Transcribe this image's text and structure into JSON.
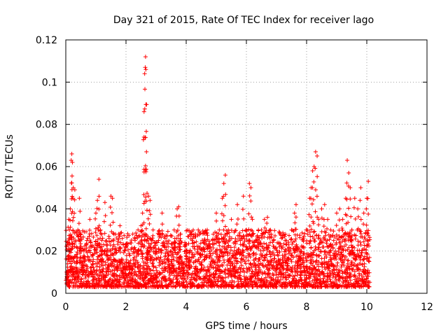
{
  "chart_data": {
    "type": "scatter",
    "title": "Day 321 of 2015, Rate Of TEC Index for receiver lago",
    "xlabel": "GPS time / hours",
    "ylabel": "ROTI / TECUs",
    "xlim": [
      0,
      12
    ],
    "ylim": [
      0,
      0.12
    ],
    "x_ticks": [
      0,
      2,
      4,
      6,
      8,
      10,
      12
    ],
    "x_tick_labels": [
      "0",
      "2",
      "4",
      "6",
      "8",
      "10",
      "12"
    ],
    "y_ticks": [
      0,
      0.02,
      0.04,
      0.06,
      0.08,
      0.1,
      0.12
    ],
    "y_tick_labels": [
      "0",
      "0.02",
      "0.04",
      "0.06",
      "0.08",
      "0.1",
      "0.12"
    ],
    "grid": true,
    "marker": "+",
    "color": "#ff0000",
    "series": [
      {
        "name": "ROTI",
        "points": [
          [
            0.05,
            0.008
          ],
          [
            0.08,
            0.021
          ],
          [
            0.1,
            0.035
          ],
          [
            0.12,
            0.03
          ],
          [
            0.15,
            0.04
          ],
          [
            0.18,
            0.063
          ],
          [
            0.2,
            0.066
          ],
          [
            0.22,
            0.062
          ],
          [
            0.25,
            0.05
          ],
          [
            0.3,
            0.049
          ],
          [
            0.35,
            0.015
          ],
          [
            0.4,
            0.03
          ],
          [
            0.45,
            0.045
          ],
          [
            0.5,
            0.028
          ],
          [
            0.55,
            0.012
          ],
          [
            0.6,
            0.02
          ],
          [
            0.7,
            0.025
          ],
          [
            0.8,
            0.035
          ],
          [
            0.9,
            0.018
          ],
          [
            1.0,
            0.038
          ],
          [
            1.05,
            0.044
          ],
          [
            1.1,
            0.054
          ],
          [
            1.15,
            0.03
          ],
          [
            1.2,
            0.022
          ],
          [
            1.3,
            0.043
          ],
          [
            1.4,
            0.02
          ],
          [
            1.5,
            0.046
          ],
          [
            1.55,
            0.045
          ],
          [
            1.6,
            0.028
          ],
          [
            1.7,
            0.015
          ],
          [
            1.8,
            0.032
          ],
          [
            1.9,
            0.01
          ],
          [
            2.0,
            0.022
          ],
          [
            2.1,
            0.014
          ],
          [
            2.2,
            0.012
          ],
          [
            2.3,
            0.025
          ],
          [
            2.4,
            0.03
          ],
          [
            2.5,
            0.032
          ],
          [
            2.55,
            0.038
          ],
          [
            2.6,
            0.086
          ],
          [
            2.62,
            0.104
          ],
          [
            2.64,
            0.107
          ],
          [
            2.65,
            0.112
          ],
          [
            2.66,
            0.106
          ],
          [
            2.68,
            0.067
          ],
          [
            2.7,
            0.025
          ],
          [
            2.75,
            0.046
          ],
          [
            2.8,
            0.044
          ],
          [
            2.9,
            0.03
          ],
          [
            3.0,
            0.02
          ],
          [
            3.1,
            0.028
          ],
          [
            3.2,
            0.038
          ],
          [
            3.3,
            0.026
          ],
          [
            3.4,
            0.022
          ],
          [
            3.5,
            0.015
          ],
          [
            3.6,
            0.03
          ],
          [
            3.7,
            0.04
          ],
          [
            3.75,
            0.041
          ],
          [
            3.8,
            0.028
          ],
          [
            3.9,
            0.012
          ],
          [
            4.0,
            0.02
          ],
          [
            4.1,
            0.015
          ],
          [
            4.2,
            0.025
          ],
          [
            4.3,
            0.012
          ],
          [
            4.4,
            0.03
          ],
          [
            4.5,
            0.018
          ],
          [
            4.6,
            0.025
          ],
          [
            4.7,
            0.03
          ],
          [
            4.8,
            0.022
          ],
          [
            4.9,
            0.028
          ],
          [
            5.0,
            0.038
          ],
          [
            5.1,
            0.03
          ],
          [
            5.2,
            0.045
          ],
          [
            5.25,
            0.052
          ],
          [
            5.3,
            0.056
          ],
          [
            5.4,
            0.03
          ],
          [
            5.5,
            0.035
          ],
          [
            5.6,
            0.02
          ],
          [
            5.7,
            0.042
          ],
          [
            5.8,
            0.025
          ],
          [
            5.9,
            0.046
          ],
          [
            6.0,
            0.03
          ],
          [
            6.1,
            0.052
          ],
          [
            6.15,
            0.05
          ],
          [
            6.2,
            0.035
          ],
          [
            6.3,
            0.022
          ],
          [
            6.4,
            0.03
          ],
          [
            6.5,
            0.03
          ],
          [
            6.6,
            0.035
          ],
          [
            6.7,
            0.036
          ],
          [
            6.8,
            0.03
          ],
          [
            6.9,
            0.025
          ],
          [
            7.0,
            0.015
          ],
          [
            7.1,
            0.022
          ],
          [
            7.2,
            0.018
          ],
          [
            7.3,
            0.028
          ],
          [
            7.4,
            0.02
          ],
          [
            7.5,
            0.03
          ],
          [
            7.6,
            0.038
          ],
          [
            7.65,
            0.042
          ],
          [
            7.7,
            0.015
          ],
          [
            7.8,
            0.02
          ],
          [
            7.9,
            0.022
          ],
          [
            8.0,
            0.03
          ],
          [
            8.1,
            0.045
          ],
          [
            8.15,
            0.05
          ],
          [
            8.2,
            0.058
          ],
          [
            8.25,
            0.06
          ],
          [
            8.3,
            0.067
          ],
          [
            8.35,
            0.065
          ],
          [
            8.4,
            0.035
          ],
          [
            8.5,
            0.04
          ],
          [
            8.6,
            0.042
          ],
          [
            8.7,
            0.035
          ],
          [
            8.8,
            0.03
          ],
          [
            8.9,
            0.025
          ],
          [
            9.0,
            0.038
          ],
          [
            9.1,
            0.04
          ],
          [
            9.2,
            0.035
          ],
          [
            9.3,
            0.045
          ],
          [
            9.35,
            0.063
          ],
          [
            9.4,
            0.057
          ],
          [
            9.45,
            0.05
          ],
          [
            9.5,
            0.03
          ],
          [
            9.6,
            0.045
          ],
          [
            9.7,
            0.04
          ],
          [
            9.8,
            0.05
          ],
          [
            9.9,
            0.038
          ],
          [
            10.0,
            0.045
          ],
          [
            10.05,
            0.053
          ]
        ],
        "dense_band": {
          "x_range": [
            0,
            10.1
          ],
          "y_range": [
            0.003,
            0.03
          ],
          "note": "many overlapping markers forming a continuous band"
        }
      }
    ]
  }
}
